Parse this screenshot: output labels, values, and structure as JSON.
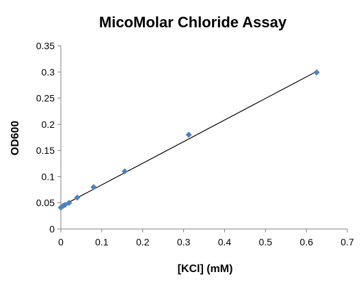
{
  "chart_data": {
    "type": "scatter",
    "title": "MicoMolar Chloride Assay",
    "xlabel": "[KCl] (mM)",
    "ylabel": "OD600",
    "xlim": [
      0,
      0.7
    ],
    "ylim": [
      0,
      0.35
    ],
    "x_ticks": [
      "0",
      "0.1",
      "0.2",
      "0.3",
      "0.4",
      "0.5",
      "0.6",
      "0.7"
    ],
    "y_ticks": [
      "0",
      "0.05",
      "0.1",
      "0.15",
      "0.2",
      "0.25",
      "0.3",
      "0.35"
    ],
    "series": [
      {
        "marker_color": "#4F81BD",
        "marker": "diamond",
        "points": [
          {
            "x": 0,
            "y": 0.041
          },
          {
            "x": 0.005,
            "y": 0.044
          },
          {
            "x": 0.01,
            "y": 0.046
          },
          {
            "x": 0.02,
            "y": 0.05
          },
          {
            "x": 0.04,
            "y": 0.06
          },
          {
            "x": 0.08,
            "y": 0.08
          },
          {
            "x": 0.156,
            "y": 0.11
          },
          {
            "x": 0.3125,
            "y": 0.18
          },
          {
            "x": 0.625,
            "y": 0.299
          }
        ]
      }
    ],
    "trendline": {
      "type": "linear",
      "color": "#000000",
      "x": [
        0,
        0.625
      ],
      "y": [
        0.043,
        0.301
      ]
    },
    "grid": false,
    "legend": "none"
  }
}
